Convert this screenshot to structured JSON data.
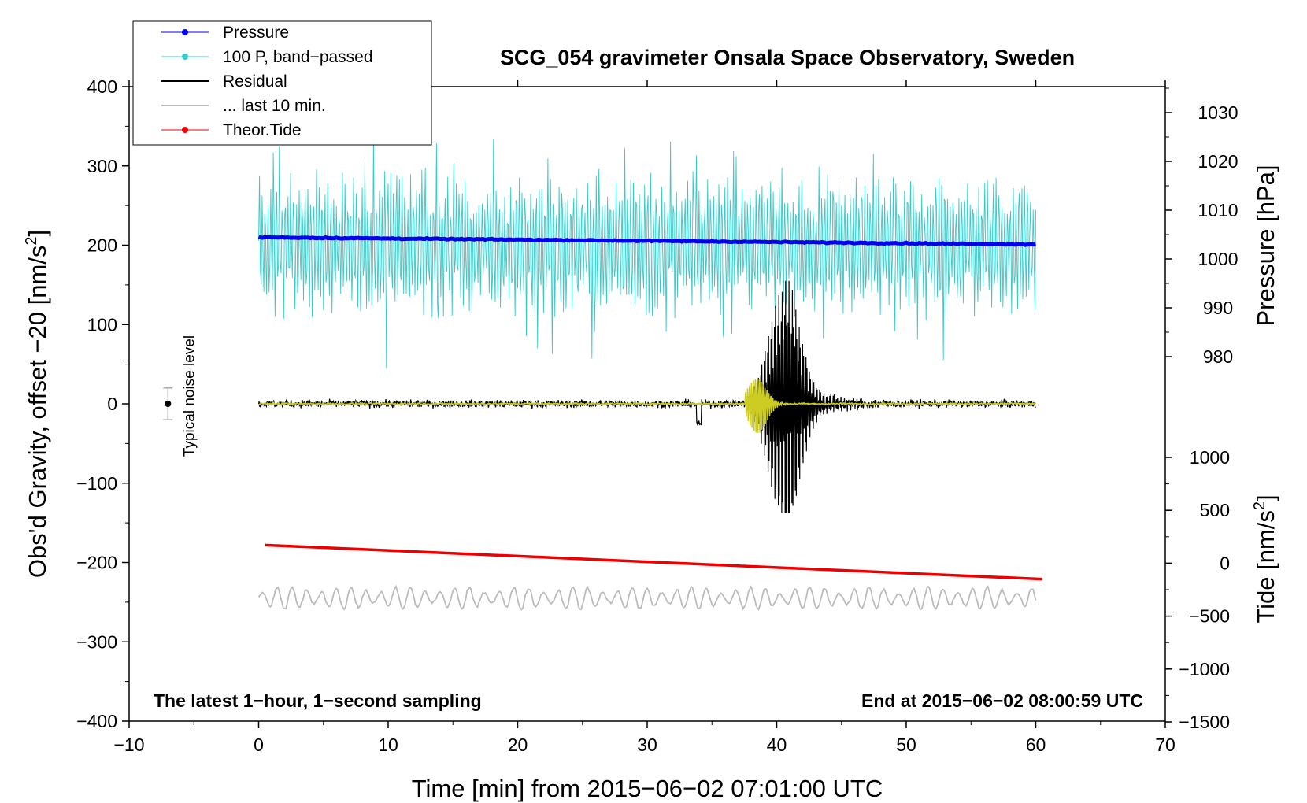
{
  "chart_data": {
    "type": "line",
    "title": "SCG_054 gravimeter Onsala Space Observatory, Sweden",
    "xlabel": "Time [min] from 2015−06−02 07:01:00 UTC",
    "ylabel": "Obs'd Gravity, offset −20 [nm/s",
    "ylabel_sup": "2",
    "ylabel_end": "]",
    "xlim": [
      -10,
      70
    ],
    "ylim": [
      -400,
      400
    ],
    "xticks": [
      {
        "v": -10,
        "label": "−10"
      },
      {
        "v": 0,
        "label": "0"
      },
      {
        "v": 10,
        "label": "10"
      },
      {
        "v": 20,
        "label": "20"
      },
      {
        "v": 30,
        "label": "30"
      },
      {
        "v": 40,
        "label": "40"
      },
      {
        "v": 50,
        "label": "50"
      },
      {
        "v": 60,
        "label": "60"
      },
      {
        "v": 70,
        "label": "70"
      }
    ],
    "yticks": [
      {
        "v": 400,
        "label": "400"
      },
      {
        "v": 300,
        "label": "300"
      },
      {
        "v": 200,
        "label": "200"
      },
      {
        "v": 100,
        "label": "100"
      },
      {
        "v": 0,
        "label": "0"
      },
      {
        "v": -100,
        "label": "−100"
      },
      {
        "v": -200,
        "label": "−200"
      },
      {
        "v": -300,
        "label": "−300"
      },
      {
        "v": -400,
        "label": "−400"
      }
    ],
    "pressure_axis": {
      "label": "Pressure [hPa]",
      "ticks": [
        {
          "v": 1030,
          "label": "1030"
        },
        {
          "v": 1020,
          "label": "1020"
        },
        {
          "v": 1010,
          "label": "1010"
        },
        {
          "v": 1000,
          "label": "1000"
        },
        {
          "v": 990,
          "label": "990"
        },
        {
          "v": 980,
          "label": "980"
        }
      ]
    },
    "tide_axis": {
      "label": "Tide [nm/s",
      "label_sup": "2",
      "label_end": "]",
      "ticks": [
        {
          "v": 1000,
          "label": "1000"
        },
        {
          "v": 500,
          "label": "500"
        },
        {
          "v": 0,
          "label": "0"
        },
        {
          "v": -500,
          "label": "−500"
        },
        {
          "v": -1000,
          "label": "−1000"
        },
        {
          "v": -1500,
          "label": "−1500"
        }
      ]
    },
    "legend": [
      {
        "label": "Pressure",
        "color": "#0000ee",
        "marker": true
      },
      {
        "label": "100 P, band−passed",
        "color": "#33cccc",
        "marker": true
      },
      {
        "label": "Residual",
        "color": "#000000",
        "marker": false
      },
      {
        "label": "... last 10 min.",
        "color": "#bbbbbb",
        "marker": false
      },
      {
        "label": "Theor.Tide",
        "color": "#ee0000",
        "marker": true
      }
    ],
    "series": [
      {
        "name": "Pressure",
        "color": "#0000ee",
        "y_start": 210,
        "y_end": 201,
        "x_start": 0,
        "x_end": 60
      },
      {
        "name": "100 P, band−passed",
        "color": "#33cccc",
        "x_start": 0,
        "x_end": 60,
        "center": 200,
        "amplitude": 90
      },
      {
        "name": "Residual",
        "color": "#000000",
        "x_start": 0,
        "x_end": 60,
        "center": 0,
        "noise": 8,
        "event_peak_min": 40.5,
        "event_max": 155,
        "event_min": -137
      },
      {
        "name": "Residual (filtered)",
        "color": "#cccc22",
        "x_start": 0,
        "x_end": 60,
        "center": 0,
        "event_peak_min": 38.5,
        "event_amp": 40
      },
      {
        "name": "... last 10 min.",
        "color": "#bbbbbb",
        "x_start": 0,
        "x_end": 60,
        "center": -245,
        "amplitude": 20
      },
      {
        "name": "Theor.Tide",
        "color": "#ee0000",
        "y_start": -178,
        "y_end": -221,
        "x_start": 0.5,
        "x_end": 60.5
      }
    ],
    "noise_marker": {
      "label": "Typical noise level",
      "x": -7,
      "y": 0,
      "err": 20
    },
    "bottom_left": "The latest 1−hour, 1−second sampling",
    "bottom_right": "End at 2015−06−02 08:00:59 UTC"
  }
}
